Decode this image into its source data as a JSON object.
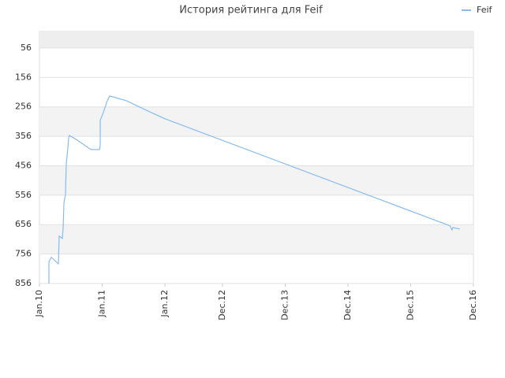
{
  "chart_data": {
    "type": "line",
    "title": "История рейтинга для Feif",
    "x": [
      1.81,
      1.81,
      2.26,
      3.62,
      3.77,
      4.38,
      4.53,
      4.68,
      4.98,
      5.13,
      5.43,
      5.58,
      5.73,
      7.24,
      9.81,
      11.47,
      11.62,
      11.62,
      12.22,
      12.98,
      13.43,
      16.6,
      21.1,
      24.1,
      78.5,
      78.9,
      79.07,
      80.4
    ],
    "series": [
      {
        "name": "Feif",
        "color": "#88bbee",
        "values": [
          856,
          783,
          767,
          789,
          695,
          703,
          668,
          583,
          553,
          449,
          396,
          361,
          353,
          369,
          401,
          401,
          388,
          302,
          275,
          235,
          219,
          235,
          273,
          297,
          660,
          674,
          666,
          671
        ]
      }
    ],
    "xlim": [
      0,
      83
    ],
    "xticks": [
      {
        "value": 0,
        "label": "Jan.10"
      },
      {
        "value": 12,
        "label": "Jan.11"
      },
      {
        "value": 24,
        "label": "Jan.12"
      },
      {
        "value": 35,
        "label": "Dec.12"
      },
      {
        "value": 47,
        "label": "Dec.13"
      },
      {
        "value": 59,
        "label": "Dec.14"
      },
      {
        "value": 71,
        "label": "Dec.15"
      },
      {
        "value": 83,
        "label": "Dec.16"
      }
    ],
    "ylim": [
      856,
      0
    ],
    "y_inverted": true,
    "yticks": [
      56,
      156,
      256,
      356,
      456,
      556,
      656,
      756,
      856
    ],
    "grid": true,
    "legend": "top-right"
  }
}
